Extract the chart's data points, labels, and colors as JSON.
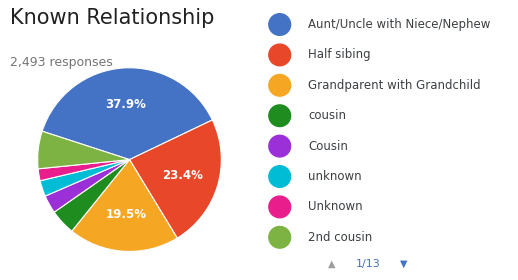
{
  "title": "Known Relationship",
  "subtitle": "2,493 responses",
  "slices": [
    {
      "label": "Aunt/Uncle with Niece/Nephew",
      "pct": 37.9,
      "color": "#4472c4"
    },
    {
      "label": "Half sibing",
      "pct": 23.4,
      "color": "#e8472a"
    },
    {
      "label": "Grandparent with Grandchild",
      "pct": 19.5,
      "color": "#f5a623"
    },
    {
      "label": "cousin",
      "pct": 4.5,
      "color": "#1e8c1e"
    },
    {
      "label": "Cousin",
      "pct": 3.2,
      "color": "#9b30d9"
    },
    {
      "label": "unknown",
      "pct": 2.8,
      "color": "#00bcd4"
    },
    {
      "label": "Unknown",
      "pct": 2.1,
      "color": "#e91e8c"
    },
    {
      "label": "2nd cousin",
      "pct": 6.6,
      "color": "#7cb342"
    }
  ],
  "title_fontsize": 15,
  "subtitle_fontsize": 9,
  "legend_fontsize": 8.5,
  "bg_color": "#ffffff",
  "text_color_title": "#212121",
  "text_color_subtitle": "#757575",
  "legend_text_color": "#3c4043",
  "pagination": "1/13",
  "startangle": 162
}
